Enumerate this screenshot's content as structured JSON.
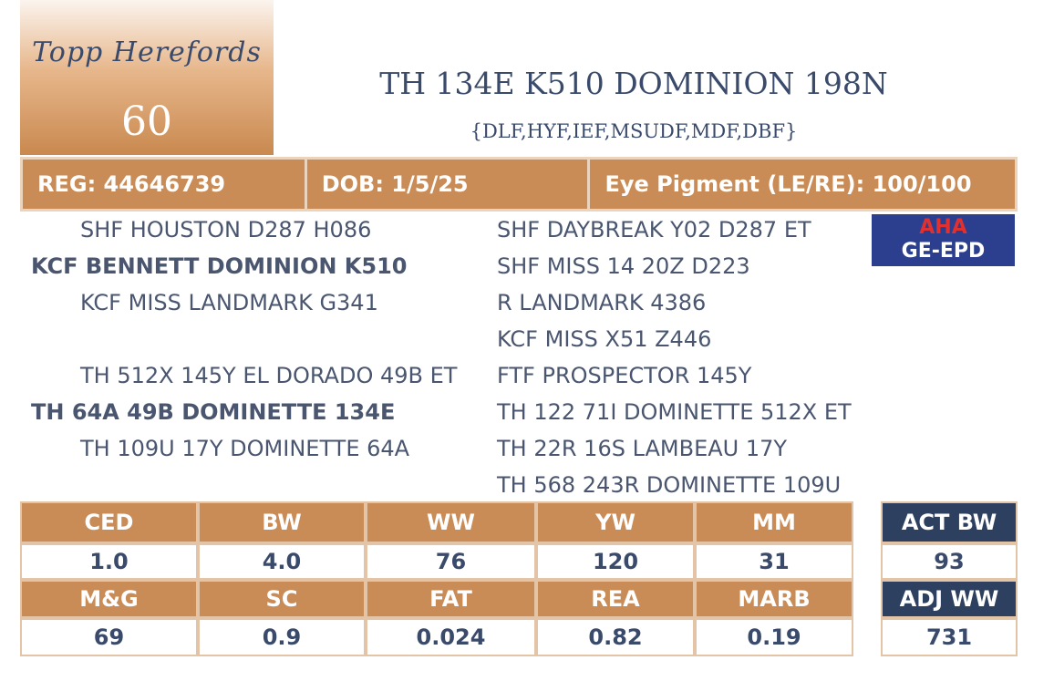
{
  "logo": {
    "text": "Topp Herefords",
    "lot": "60"
  },
  "header": {
    "title": "TH 134E K510 DOMINION 198N",
    "subtitle": "{DLF,HYF,IEF,MSUDF,MDF,DBF}"
  },
  "info": [
    "REG: 44646739",
    "DOB: 1/5/25",
    "Eye Pigment (LE/RE): 100/100"
  ],
  "pedigree": {
    "left": [
      {
        "text": "SHF HOUSTON D287 H086",
        "bold": false
      },
      {
        "text": "KCF BENNETT DOMINION K510",
        "bold": true
      },
      {
        "text": "KCF MISS LANDMARK G341",
        "bold": false
      },
      {
        "text": "TH 512X 145Y EL DORADO 49B ET",
        "bold": false
      },
      {
        "text": "TH 64A 49B DOMINETTE 134E",
        "bold": true
      },
      {
        "text": "TH 109U 17Y DOMINETTE 64A",
        "bold": false
      }
    ],
    "right": [
      "SHF DAYBREAK Y02 D287 ET",
      "SHF MISS 14 20Z D223",
      "R LANDMARK 4386",
      "KCF MISS X51 Z446",
      "FTF PROSPECTOR 145Y",
      "TH 122 71I DOMINETTE 512X ET",
      "TH 22R 16S LAMBEAU 17Y",
      "TH 568 243R DOMINETTE 109U"
    ]
  },
  "badge": {
    "line1": "AHA",
    "line2": "GE-EPD"
  },
  "epd": {
    "rows": [
      {
        "labels": [
          "CED",
          "BW",
          "WW",
          "YW",
          "MM"
        ],
        "values": [
          "1.0",
          "4.0",
          "76",
          "120",
          "31"
        ]
      },
      {
        "labels": [
          "M&G",
          "SC",
          "FAT",
          "REA",
          "MARB"
        ],
        "values": [
          "69",
          "0.9",
          "0.024",
          "0.82",
          "0.19"
        ]
      }
    ]
  },
  "side": [
    {
      "label": "ACT BW",
      "value": "93"
    },
    {
      "label": "ADJ WW",
      "value": "731"
    }
  ]
}
